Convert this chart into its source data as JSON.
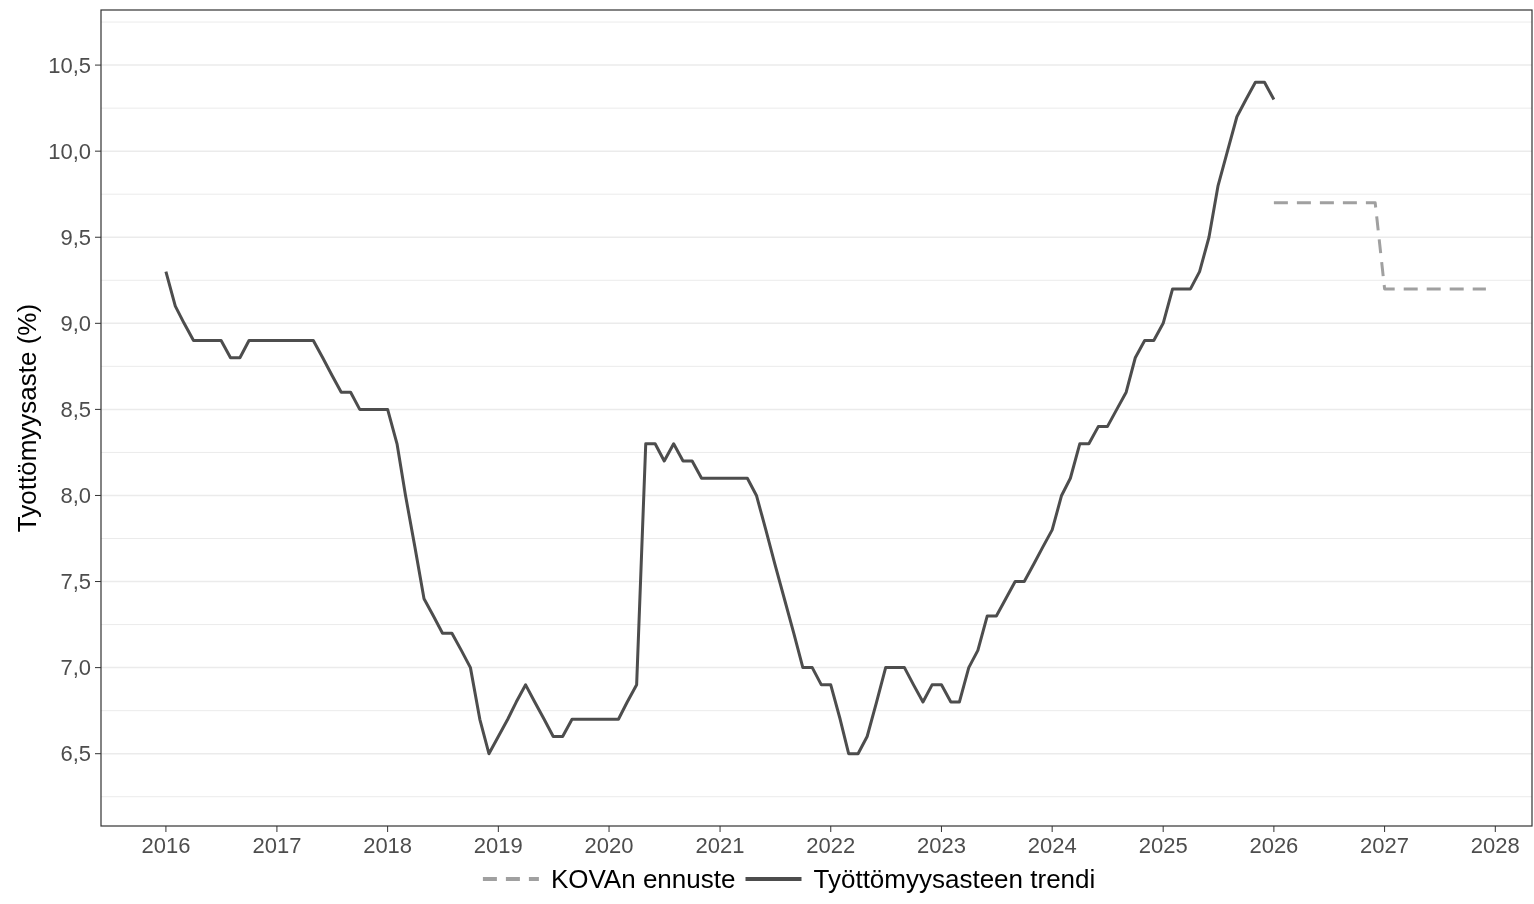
{
  "chart_data": {
    "type": "line",
    "ylabel": "Tyottömyysaste (%)",
    "xlim": [
      "2015-06",
      "2028-05"
    ],
    "xticks": [
      "2016",
      "2017",
      "2018",
      "2019",
      "2020",
      "2021",
      "2022",
      "2023",
      "2024",
      "2025",
      "2026",
      "2027",
      "2028"
    ],
    "ylim": [
      6.08,
      10.82
    ],
    "yticks": [
      {
        "value": 6.25,
        "label": null
      },
      {
        "value": 6.5,
        "label": "6,5"
      },
      {
        "value": 6.75,
        "label": null
      },
      {
        "value": 7,
        "label": "7,0"
      },
      {
        "value": 7.25,
        "label": null
      },
      {
        "value": 7.5,
        "label": "7,5"
      },
      {
        "value": 7.75,
        "label": null
      },
      {
        "value": 8,
        "label": "8,0"
      },
      {
        "value": 8.25,
        "label": null
      },
      {
        "value": 8.5,
        "label": "8,5"
      },
      {
        "value": 8.75,
        "label": null
      },
      {
        "value": 9,
        "label": "9,0"
      },
      {
        "value": 9.25,
        "label": null
      },
      {
        "value": 9.5,
        "label": "9,5"
      },
      {
        "value": 9.75,
        "label": null
      },
      {
        "value": 10,
        "label": "10,0"
      },
      {
        "value": 10.25,
        "label": null
      },
      {
        "value": 10.5,
        "label": "10,5"
      },
      {
        "value": 10.75,
        "label": null
      }
    ],
    "grid": "y",
    "legend": "bottom",
    "series": [
      {
        "name": "KOVAn ennuste",
        "color": "#a0a0a0",
        "line_style": "dashed",
        "x": [
          "2026-01",
          "2026-12",
          "2027-01",
          "2027-12"
        ],
        "values": [
          9.7,
          9.7,
          9.2,
          9.2
        ]
      },
      {
        "name": "Työttömyysasteen trendi",
        "color": "#4d4d4d",
        "line_style": "solid",
        "x": [
          "2016-01",
          "2016-02",
          "2016-03",
          "2016-04",
          "2016-05",
          "2016-06",
          "2016-07",
          "2016-08",
          "2016-09",
          "2016-10",
          "2016-11",
          "2016-12",
          "2017-01",
          "2017-02",
          "2017-03",
          "2017-04",
          "2017-05",
          "2017-06",
          "2017-07",
          "2017-08",
          "2017-09",
          "2017-10",
          "2017-11",
          "2017-12",
          "2018-01",
          "2018-02",
          "2018-03",
          "2018-04",
          "2018-05",
          "2018-06",
          "2018-07",
          "2018-08",
          "2018-09",
          "2018-10",
          "2018-11",
          "2018-12",
          "2019-01",
          "2019-02",
          "2019-03",
          "2019-04",
          "2019-05",
          "2019-06",
          "2019-07",
          "2019-08",
          "2019-09",
          "2019-10",
          "2019-11",
          "2019-12",
          "2020-01",
          "2020-02",
          "2020-03",
          "2020-04",
          "2020-05",
          "2020-06",
          "2020-07",
          "2020-08",
          "2020-09",
          "2020-10",
          "2020-11",
          "2020-12",
          "2021-01",
          "2021-02",
          "2021-03",
          "2021-04",
          "2021-05",
          "2021-06",
          "2021-07",
          "2021-08",
          "2021-09",
          "2021-10",
          "2021-11",
          "2021-12",
          "2022-01",
          "2022-02",
          "2022-03",
          "2022-04",
          "2022-05",
          "2022-06",
          "2022-07",
          "2022-08",
          "2022-09",
          "2022-10",
          "2022-11",
          "2022-12",
          "2023-01",
          "2023-02",
          "2023-03",
          "2023-04",
          "2023-05",
          "2023-06",
          "2023-07",
          "2023-08",
          "2023-09",
          "2023-10",
          "2023-11",
          "2023-12",
          "2024-01",
          "2024-02",
          "2024-03",
          "2024-04",
          "2024-05",
          "2024-06",
          "2024-07",
          "2024-08",
          "2024-09",
          "2024-10",
          "2024-11",
          "2024-12",
          "2025-01",
          "2025-02",
          "2025-03",
          "2025-04",
          "2025-05",
          "2025-06",
          "2025-07",
          "2025-08",
          "2025-09",
          "2025-10",
          "2025-11",
          "2025-12",
          "2026-01"
        ],
        "values": [
          9.3,
          9.1,
          9.0,
          8.9,
          8.9,
          8.9,
          8.9,
          8.8,
          8.8,
          8.9,
          8.9,
          8.9,
          8.9,
          8.9,
          8.9,
          8.9,
          8.9,
          8.8,
          8.7,
          8.6,
          8.6,
          8.5,
          8.5,
          8.5,
          8.5,
          8.3,
          8.0,
          7.7,
          7.4,
          7.3,
          7.2,
          7.2,
          7.1,
          7.0,
          6.7,
          6.5,
          6.6,
          6.7,
          6.8,
          6.9,
          6.8,
          6.7,
          6.6,
          6.6,
          6.7,
          6.7,
          6.7,
          6.7,
          6.7,
          6.7,
          6.8,
          6.9,
          8.3,
          8.3,
          8.2,
          8.3,
          8.2,
          8.2,
          8.1,
          8.1,
          8.1,
          8.1,
          8.1,
          8.1,
          8.0,
          7.8,
          7.6,
          7.4,
          7.2,
          7.0,
          7.0,
          6.9,
          6.9,
          6.7,
          6.5,
          6.5,
          6.6,
          6.8,
          7.0,
          7.0,
          7.0,
          6.9,
          6.8,
          6.9,
          6.9,
          6.8,
          6.8,
          7.0,
          7.1,
          7.3,
          7.3,
          7.4,
          7.5,
          7.5,
          7.6,
          7.7,
          7.8,
          8.0,
          8.1,
          8.3,
          8.3,
          8.4,
          8.4,
          8.5,
          8.6,
          8.8,
          8.9,
          8.9,
          9.0,
          9.2,
          9.2,
          9.2,
          9.3,
          9.5,
          9.8,
          10.0,
          10.2,
          10.3,
          10.4,
          10.4,
          10.3
        ]
      }
    ]
  }
}
